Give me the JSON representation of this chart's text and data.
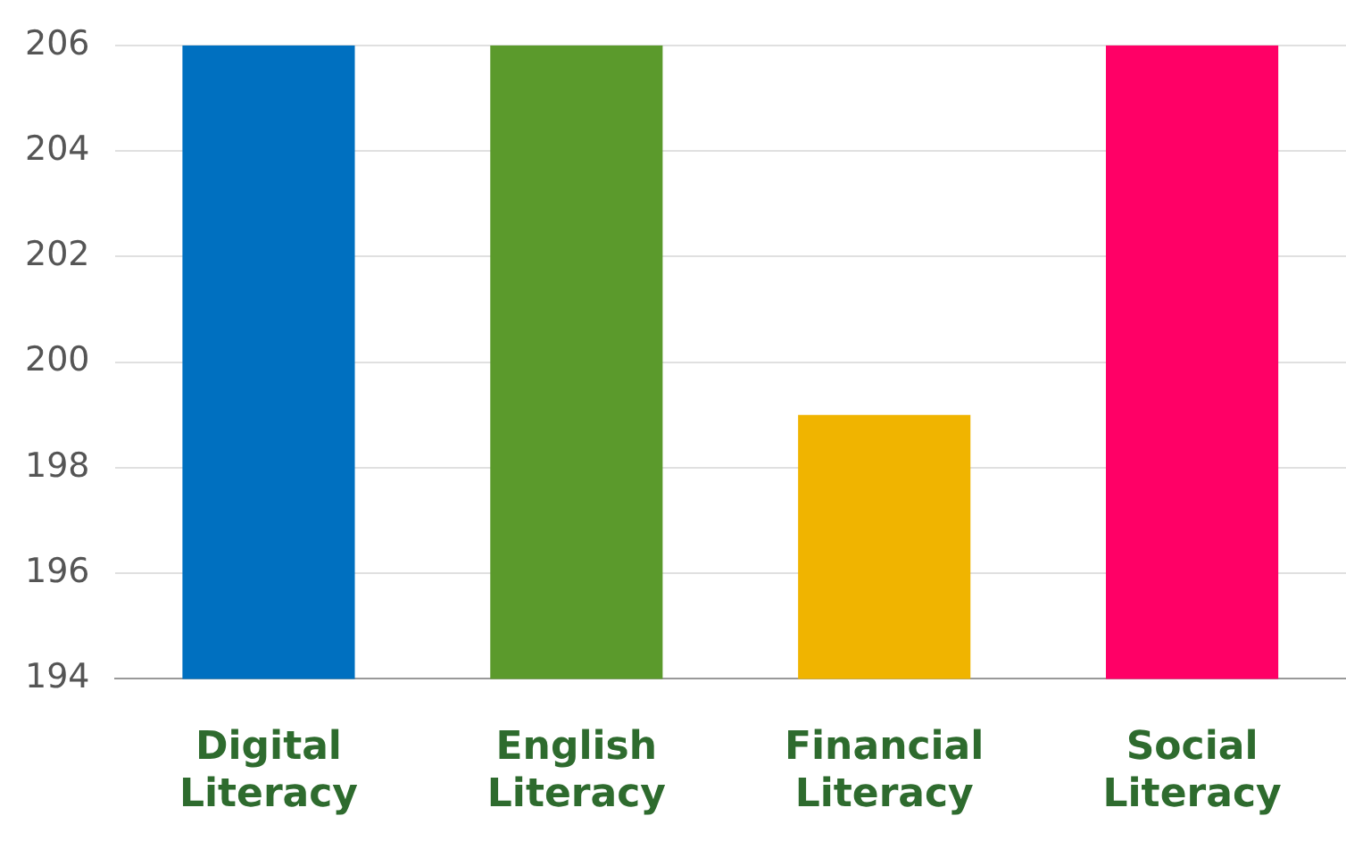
{
  "chart_data": {
    "type": "bar",
    "categories": [
      "Digital Literacy",
      "English Literacy",
      "Financial Literacy",
      "Social Literacy"
    ],
    "values": [
      206,
      206,
      199,
      206
    ],
    "colors": [
      "#0070c0",
      "#5b9a2c",
      "#f0b400",
      "#ff0066"
    ],
    "ylim": [
      194,
      206
    ],
    "yticks": [
      194,
      196,
      198,
      200,
      202,
      204,
      206
    ],
    "grid": "y"
  }
}
